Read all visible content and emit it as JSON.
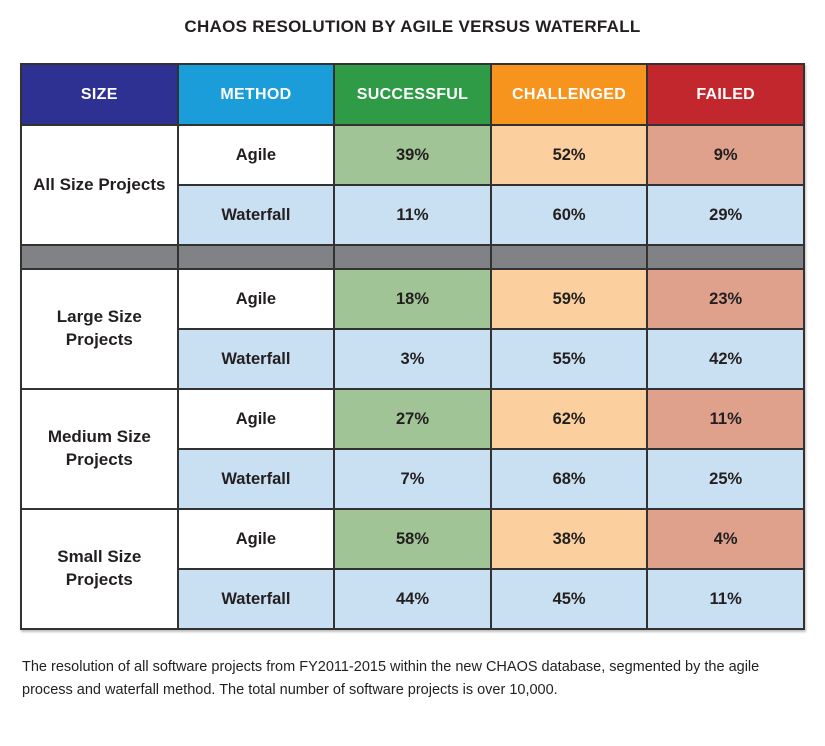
{
  "title": "CHAOS RESOLUTION BY AGILE VERSUS WATERFALL",
  "columns": [
    "SIZE",
    "METHOD",
    "SUCCESSFUL",
    "CHALLENGED",
    "FAILED"
  ],
  "colors": {
    "header_size": "#2e3192",
    "header_method": "#1b9dd9",
    "header_successful": "#2f9b47",
    "header_challenged": "#f7941e",
    "header_failed": "#c1272d",
    "cell_green": "#a0c495",
    "cell_peach": "#fbd09e",
    "cell_salmon": "#dfa18c",
    "cell_blue": "#c9dff2",
    "separator_gray": "#808285",
    "border": "#323232"
  },
  "sections": [
    {
      "size": "All Size Projects",
      "rows": [
        {
          "method": "Agile",
          "successful": "39%",
          "challenged": "52%",
          "failed": "9%"
        },
        {
          "method": "Waterfall",
          "successful": "11%",
          "challenged": "60%",
          "failed": "29%"
        }
      ]
    },
    {
      "size": "Large Size Projects",
      "rows": [
        {
          "method": "Agile",
          "successful": "18%",
          "challenged": "59%",
          "failed": "23%"
        },
        {
          "method": "Waterfall",
          "successful": "3%",
          "challenged": "55%",
          "failed": "42%"
        }
      ]
    },
    {
      "size": "Medium Size Projects",
      "rows": [
        {
          "method": "Agile",
          "successful": "27%",
          "challenged": "62%",
          "failed": "11%"
        },
        {
          "method": "Waterfall",
          "successful": "7%",
          "challenged": "68%",
          "failed": "25%"
        }
      ]
    },
    {
      "size": "Small Size Projects",
      "rows": [
        {
          "method": "Agile",
          "successful": "58%",
          "challenged": "38%",
          "failed": "4%"
        },
        {
          "method": "Waterfall",
          "successful": "44%",
          "challenged": "45%",
          "failed": "11%"
        }
      ]
    }
  ],
  "caption": "The resolution of all software projects from FY2011-2015 within the new CHAOS database, segmented by the agile process and waterfall method. The total number of software projects is over 10,000.",
  "chart_data": {
    "type": "table",
    "title": "CHAOS RESOLUTION BY AGILE VERSUS WATERFALL",
    "columns": [
      "SIZE",
      "METHOD",
      "SUCCESSFUL",
      "CHALLENGED",
      "FAILED"
    ],
    "units": "percent",
    "rows": [
      [
        "All Size Projects",
        "Agile",
        39,
        52,
        9
      ],
      [
        "All Size Projects",
        "Waterfall",
        11,
        60,
        29
      ],
      [
        "Large Size Projects",
        "Agile",
        18,
        59,
        23
      ],
      [
        "Large Size Projects",
        "Waterfall",
        3,
        55,
        42
      ],
      [
        "Medium Size Projects",
        "Agile",
        27,
        62,
        11
      ],
      [
        "Medium Size Projects",
        "Waterfall",
        7,
        68,
        25
      ],
      [
        "Small Size Projects",
        "Agile",
        58,
        38,
        4
      ],
      [
        "Small Size Projects",
        "Waterfall",
        44,
        45,
        11
      ]
    ],
    "caption": "The resolution of all software projects from FY2011-2015 within the new CHAOS database, segmented by the agile process and waterfall method. The total number of software projects is over 10,000."
  }
}
